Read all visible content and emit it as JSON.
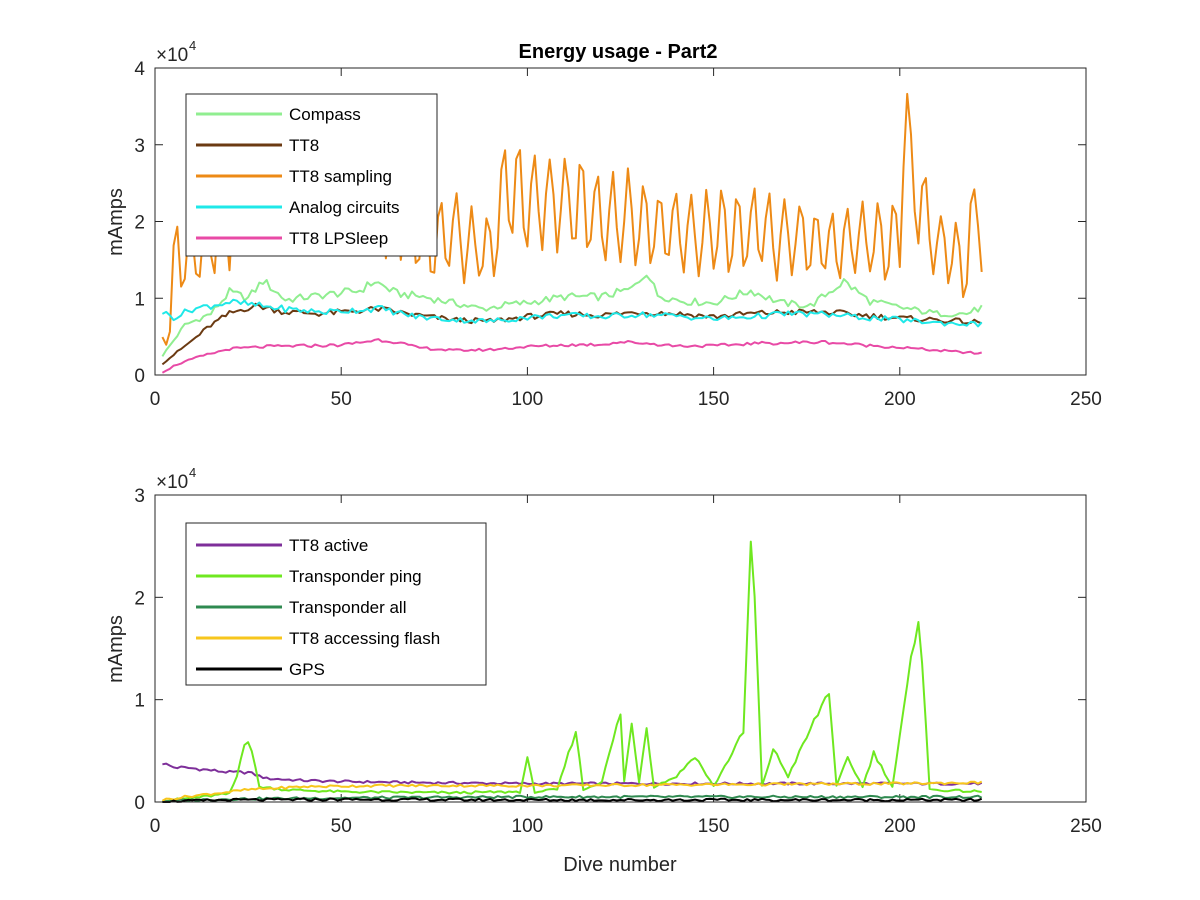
{
  "chart_data": [
    {
      "type": "line",
      "title": "Energy usage - Part2",
      "xlabel": "",
      "ylabel": "mAmps",
      "xlim": [
        0,
        250
      ],
      "ylim": [
        0,
        40000
      ],
      "x_ticks": [
        "0",
        "50",
        "100",
        "150",
        "200",
        "250"
      ],
      "y_ticks": [
        "0",
        "1",
        "2",
        "3",
        "4"
      ],
      "y_exponent_base": "×10",
      "y_exponent_power": "4",
      "legend_location": "top-left",
      "x_range": [
        2,
        222
      ],
      "series": [
        {
          "name": "Compass",
          "color": "#90ee90",
          "keypoints": [
            [
              2,
              2500
            ],
            [
              8,
              6500
            ],
            [
              15,
              8000
            ],
            [
              20,
              10800
            ],
            [
              25,
              10000
            ],
            [
              29,
              12300
            ],
            [
              35,
              9800
            ],
            [
              45,
              10400
            ],
            [
              55,
              11000
            ],
            [
              59,
              12200
            ],
            [
              65,
              10600
            ],
            [
              72,
              10200
            ],
            [
              80,
              9400
            ],
            [
              88,
              8600
            ],
            [
              95,
              9200
            ],
            [
              100,
              9400
            ],
            [
              110,
              10200
            ],
            [
              120,
              10200
            ],
            [
              128,
              11200
            ],
            [
              132,
              13500
            ],
            [
              135,
              10400
            ],
            [
              142,
              9600
            ],
            [
              150,
              9400
            ],
            [
              160,
              11000
            ],
            [
              168,
              9400
            ],
            [
              176,
              9000
            ],
            [
              185,
              12200
            ],
            [
              192,
              9600
            ],
            [
              200,
              8800
            ],
            [
              210,
              8000
            ],
            [
              218,
              8000
            ],
            [
              222,
              8800
            ]
          ]
        },
        {
          "name": "TT8",
          "color": "#6b3a12",
          "keypoints": [
            [
              2,
              1500
            ],
            [
              6,
              3000
            ],
            [
              10,
              4500
            ],
            [
              15,
              6500
            ],
            [
              20,
              8000
            ],
            [
              25,
              8800
            ],
            [
              28,
              9000
            ],
            [
              35,
              8200
            ],
            [
              45,
              8000
            ],
            [
              55,
              8400
            ],
            [
              60,
              8600
            ],
            [
              70,
              7800
            ],
            [
              80,
              7200
            ],
            [
              90,
              7000
            ],
            [
              100,
              7600
            ],
            [
              110,
              8000
            ],
            [
              120,
              7800
            ],
            [
              130,
              8200
            ],
            [
              140,
              8000
            ],
            [
              150,
              7600
            ],
            [
              160,
              8000
            ],
            [
              170,
              8200
            ],
            [
              180,
              8200
            ],
            [
              190,
              7800
            ],
            [
              200,
              7400
            ],
            [
              210,
              7200
            ],
            [
              222,
              6800
            ]
          ]
        },
        {
          "name": "TT8 sampling",
          "color": "#ed8a16",
          "keypoints": [
            [
              2,
              5000
            ],
            [
              4,
              6500
            ],
            [
              5,
              13000
            ],
            [
              6,
              17800
            ],
            [
              7,
              16000
            ],
            [
              8,
              14500
            ],
            [
              12,
              15500
            ],
            [
              18,
              20000
            ],
            [
              22,
              21000
            ],
            [
              30,
              23000
            ],
            [
              40,
              24000
            ],
            [
              50,
              25000
            ],
            [
              60,
              23000
            ],
            [
              70,
              18000
            ],
            [
              80,
              18000
            ],
            [
              90,
              16000
            ],
            [
              95,
              26000
            ],
            [
              100,
              22000
            ],
            [
              110,
              23000
            ],
            [
              120,
              21000
            ],
            [
              130,
              20000
            ],
            [
              140,
              19000
            ],
            [
              150,
              18000
            ],
            [
              160,
              19000
            ],
            [
              170,
              18000
            ],
            [
              180,
              17000
            ],
            [
              190,
              17500
            ],
            [
              200,
              18000
            ],
            [
              201,
              36000
            ],
            [
              203,
              25000
            ],
            [
              210,
              17000
            ],
            [
              218,
              14000
            ],
            [
              221,
              24500
            ],
            [
              222,
              16000
            ]
          ],
          "osc_amp": 0.28,
          "osc_period": 4.2
        },
        {
          "name": "Analog circuits",
          "color": "#1fe8e8",
          "keypoints": [
            [
              2,
              8200
            ],
            [
              5,
              7500
            ],
            [
              10,
              8600
            ],
            [
              20,
              9500
            ],
            [
              25,
              9200
            ],
            [
              35,
              8600
            ],
            [
              45,
              8200
            ],
            [
              55,
              8500
            ],
            [
              60,
              8700
            ],
            [
              70,
              7600
            ],
            [
              80,
              7200
            ],
            [
              90,
              7000
            ],
            [
              100,
              7500
            ],
            [
              110,
              7800
            ],
            [
              120,
              7600
            ],
            [
              130,
              7900
            ],
            [
              140,
              7700
            ],
            [
              150,
              7300
            ],
            [
              160,
              7600
            ],
            [
              170,
              8000
            ],
            [
              180,
              7900
            ],
            [
              190,
              7500
            ],
            [
              200,
              7200
            ],
            [
              210,
              6800
            ],
            [
              222,
              6600
            ]
          ]
        },
        {
          "name": "TT8 LPSleep",
          "color": "#e84aa6",
          "keypoints": [
            [
              2,
              400
            ],
            [
              6,
              1400
            ],
            [
              12,
              2400
            ],
            [
              20,
              3400
            ],
            [
              30,
              3700
            ],
            [
              40,
              3800
            ],
            [
              50,
              3900
            ],
            [
              60,
              4600
            ],
            [
              65,
              4300
            ],
            [
              70,
              3600
            ],
            [
              80,
              3200
            ],
            [
              90,
              3300
            ],
            [
              100,
              3700
            ],
            [
              110,
              3900
            ],
            [
              120,
              4000
            ],
            [
              125,
              4300
            ],
            [
              130,
              4200
            ],
            [
              140,
              3800
            ],
            [
              150,
              3800
            ],
            [
              160,
              4100
            ],
            [
              170,
              4200
            ],
            [
              180,
              4300
            ],
            [
              190,
              3900
            ],
            [
              200,
              3600
            ],
            [
              210,
              3200
            ],
            [
              222,
              2800
            ]
          ]
        }
      ]
    },
    {
      "type": "line",
      "title": "",
      "xlabel": "Dive number",
      "ylabel": "mAmps",
      "xlim": [
        0,
        250
      ],
      "ylim": [
        0,
        30000
      ],
      "x_ticks": [
        "0",
        "50",
        "100",
        "150",
        "200",
        "250"
      ],
      "y_ticks": [
        "0",
        "1",
        "2",
        "3"
      ],
      "y_exponent_base": "×10",
      "y_exponent_power": "4",
      "legend_location": "top-left",
      "x_range": [
        2,
        222
      ],
      "series": [
        {
          "name": "TT8 active",
          "color": "#7e2f9a",
          "keypoints": [
            [
              2,
              3800
            ],
            [
              5,
              3400
            ],
            [
              10,
              3300
            ],
            [
              20,
              2900
            ],
            [
              25,
              2900
            ],
            [
              30,
              2300
            ],
            [
              40,
              2100
            ],
            [
              50,
              2000
            ],
            [
              70,
              1900
            ],
            [
              100,
              1800
            ],
            [
              150,
              1800
            ],
            [
              200,
              1800
            ],
            [
              222,
              1800
            ]
          ]
        },
        {
          "name": "Transponder ping",
          "color": "#6fe820",
          "keypoints": [
            [
              2,
              100
            ],
            [
              10,
              400
            ],
            [
              20,
              800
            ],
            [
              22,
              2500
            ],
            [
              24,
              5800
            ],
            [
              25,
              6100
            ],
            [
              26,
              5000
            ],
            [
              28,
              1500
            ],
            [
              35,
              1200
            ],
            [
              50,
              1000
            ],
            [
              80,
              900
            ],
            [
              98,
              1000
            ],
            [
              100,
              4200
            ],
            [
              102,
              1000
            ],
            [
              108,
              1200
            ],
            [
              113,
              7000
            ],
            [
              115,
              1200
            ],
            [
              120,
              2000
            ],
            [
              125,
              8700
            ],
            [
              126,
              2000
            ],
            [
              128,
              7600
            ],
            [
              130,
              2000
            ],
            [
              132,
              7300
            ],
            [
              134,
              1500
            ],
            [
              140,
              2500
            ],
            [
              145,
              4500
            ],
            [
              150,
              1500
            ],
            [
              158,
              6800
            ],
            [
              160,
              25000
            ],
            [
              161,
              20000
            ],
            [
              163,
              1500
            ],
            [
              166,
              5200
            ],
            [
              170,
              2500
            ],
            [
              181,
              10900
            ],
            [
              183,
              1500
            ],
            [
              186,
              4300
            ],
            [
              190,
              1500
            ],
            [
              193,
              4800
            ],
            [
              198,
              1500
            ],
            [
              205,
              18400
            ],
            [
              206,
              14000
            ],
            [
              208,
              1200
            ],
            [
              222,
              1000
            ]
          ]
        },
        {
          "name": "Transponder all",
          "color": "#2f8a50",
          "keypoints": [
            [
              2,
              100
            ],
            [
              20,
              300
            ],
            [
              50,
              400
            ],
            [
              100,
              500
            ],
            [
              150,
              500
            ],
            [
              200,
              500
            ],
            [
              222,
              500
            ]
          ]
        },
        {
          "name": "TT8 accessing flash",
          "color": "#f7c61c",
          "keypoints": [
            [
              2,
              200
            ],
            [
              10,
              600
            ],
            [
              25,
              1200
            ],
            [
              40,
              1500
            ],
            [
              60,
              1600
            ],
            [
              80,
              1600
            ],
            [
              100,
              1600
            ],
            [
              150,
              1700
            ],
            [
              200,
              1800
            ],
            [
              222,
              1900
            ]
          ]
        },
        {
          "name": "GPS",
          "color": "#000000",
          "keypoints": [
            [
              2,
              50
            ],
            [
              20,
              200
            ],
            [
              50,
              250
            ],
            [
              100,
              200
            ],
            [
              150,
              200
            ],
            [
              200,
              200
            ],
            [
              222,
              200
            ]
          ]
        }
      ]
    }
  ]
}
